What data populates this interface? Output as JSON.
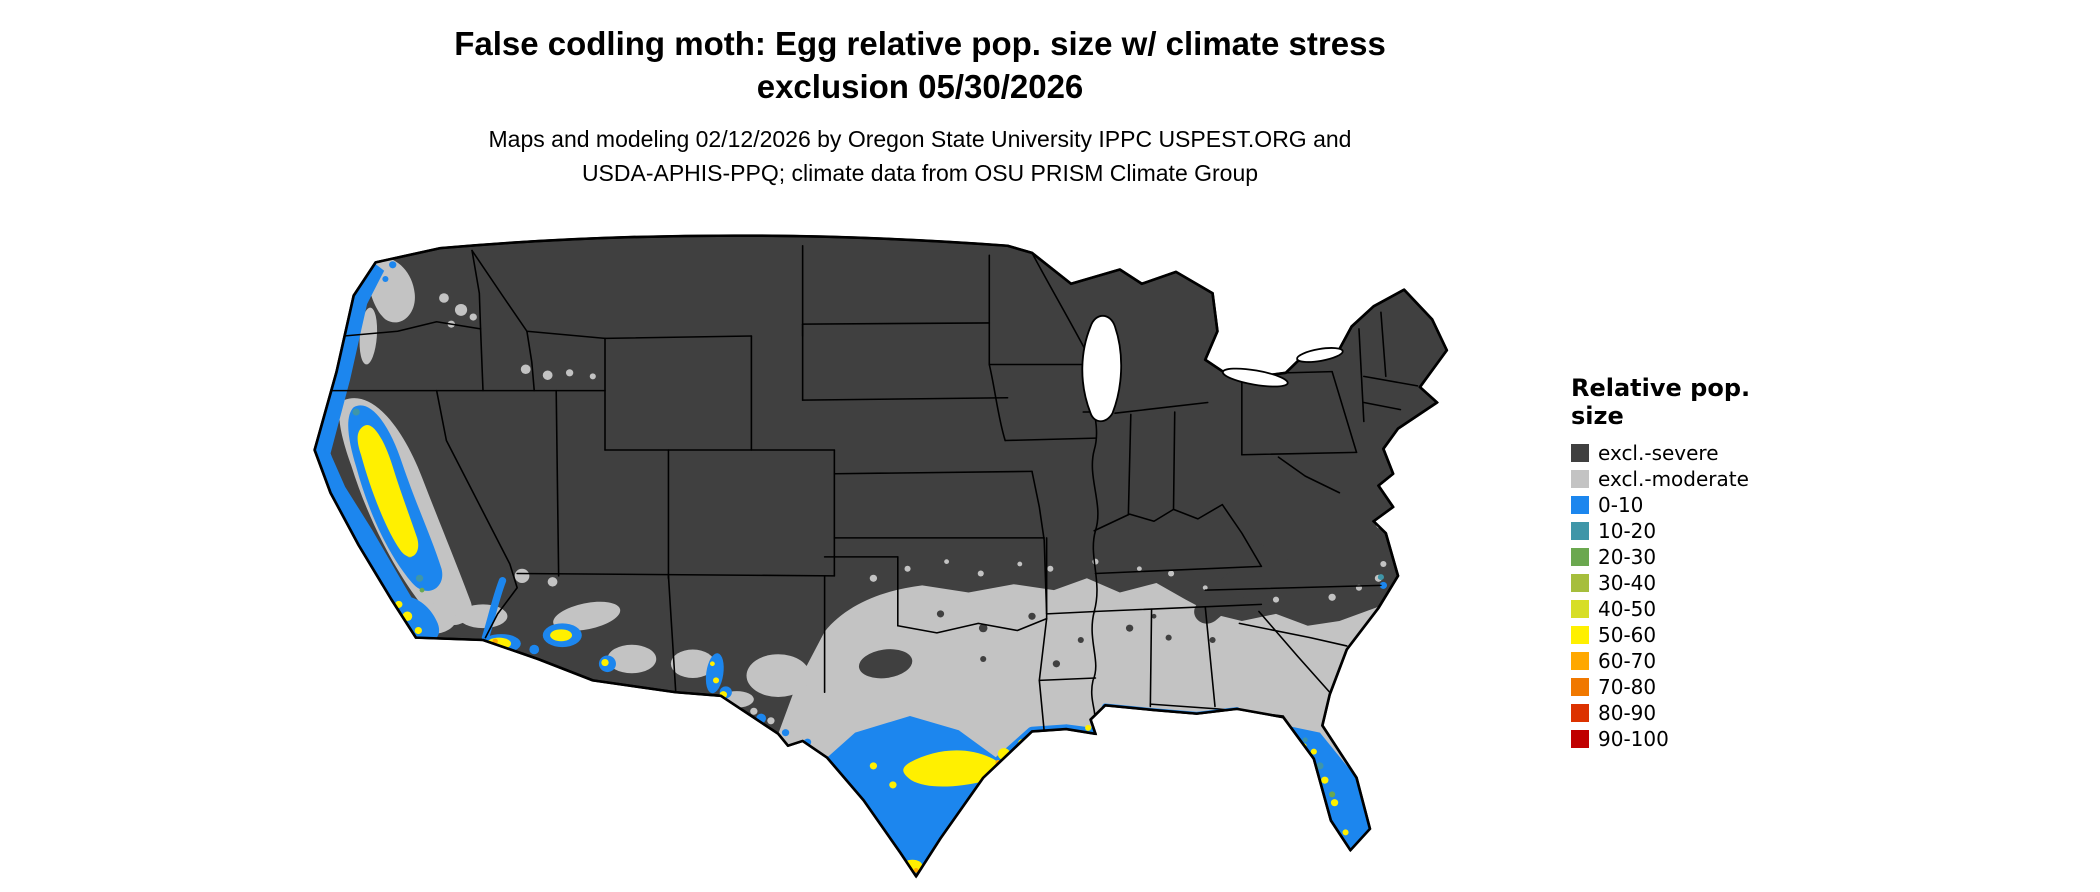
{
  "title": {
    "line1": "False codling moth: Egg relative pop. size w/ climate stress",
    "line2": "exclusion 05/30/2026"
  },
  "subtitle": {
    "line1": "Maps and modeling 02/12/2026 by Oregon State University IPPC USPEST.ORG and",
    "line2": "USDA-APHIS-PPQ; climate data from OSU PRISM Climate Group"
  },
  "legend": {
    "title": "Relative pop. size",
    "items": [
      {
        "label": "excl.-severe",
        "color": "#404040"
      },
      {
        "label": "excl.-moderate",
        "color": "#C3C3C3"
      },
      {
        "label": "0-10",
        "color": "#1C86EE"
      },
      {
        "label": "10-20",
        "color": "#3F96A8"
      },
      {
        "label": "20-30",
        "color": "#6BA84F"
      },
      {
        "label": "30-40",
        "color": "#A6BE3C"
      },
      {
        "label": "40-50",
        "color": "#D7DE26"
      },
      {
        "label": "50-60",
        "color": "#FFF000"
      },
      {
        "label": "60-70",
        "color": "#FFA800"
      },
      {
        "label": "70-80",
        "color": "#F07800"
      },
      {
        "label": "80-90",
        "color": "#DC3200"
      },
      {
        "label": "90-100",
        "color": "#C00000"
      }
    ]
  },
  "map": {
    "palette": {
      "severe": "#404040",
      "moderate": "#C3C3C3",
      "p0": "#1C86EE",
      "p10": "#3F96A8",
      "p20": "#6BA84F",
      "p30": "#A6BE3C",
      "p40": "#D7DE26",
      "p50": "#FFF000",
      "p60": "#FFA800",
      "p70": "#F07800",
      "p80": "#DC3200",
      "p90": "#C00000",
      "outline": "#000000",
      "water": "#FFFFFF"
    }
  }
}
